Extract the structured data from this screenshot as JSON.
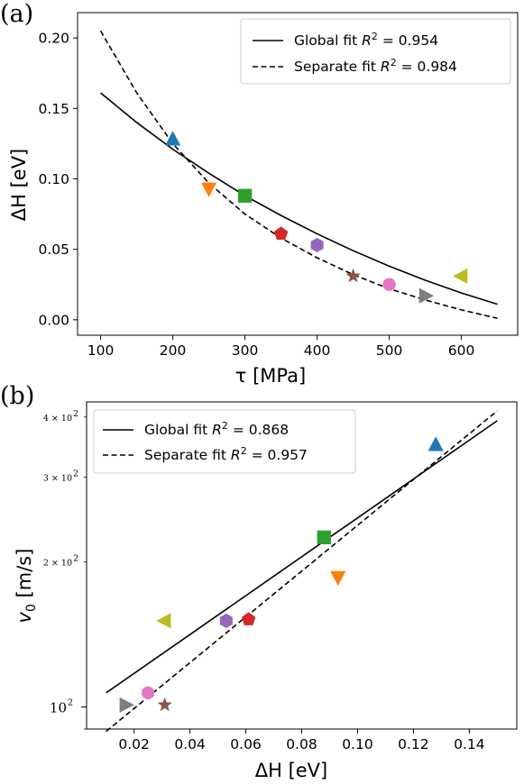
{
  "chart_data": [
    {
      "panel_label": "(a)",
      "type": "scatter",
      "xlabel": "τ [MPa]",
      "ylabel": "ΔH  [eV]",
      "xlim": [
        68,
        678
      ],
      "ylim": [
        -0.011,
        0.218
      ],
      "xticks": [
        100,
        200,
        300,
        400,
        500,
        600
      ],
      "xtick_labels": [
        "100",
        "200",
        "300",
        "400",
        "500",
        "600"
      ],
      "yticks": [
        0.0,
        0.05,
        0.1,
        0.15,
        0.2
      ],
      "ytick_labels": [
        "0.00",
        "0.05",
        "0.10",
        "0.15",
        "0.20"
      ],
      "y_scale": "linear",
      "legend_placement": "top-right",
      "grid": false,
      "points": [
        {
          "x": 200,
          "y": 0.128,
          "marker": "triangle-up",
          "color": "#1f77b4"
        },
        {
          "x": 250,
          "y": 0.093,
          "marker": "triangle-down",
          "color": "#ff7f0e"
        },
        {
          "x": 300,
          "y": 0.088,
          "marker": "square",
          "color": "#2ca02c"
        },
        {
          "x": 350,
          "y": 0.061,
          "marker": "pentagon",
          "color": "#d62728"
        },
        {
          "x": 400,
          "y": 0.053,
          "marker": "hexagon",
          "color": "#9467bd"
        },
        {
          "x": 450,
          "y": 0.031,
          "marker": "star",
          "color": "#8c564b"
        },
        {
          "x": 500,
          "y": 0.025,
          "marker": "circle",
          "color": "#e377c2"
        },
        {
          "x": 550,
          "y": 0.017,
          "marker": "triangle-right",
          "color": "#7f7f7f"
        },
        {
          "x": 600,
          "y": 0.031,
          "marker": "triangle-left",
          "color": "#bcbd22"
        }
      ],
      "series": [
        {
          "legend_prefix": "Global fit ",
          "legend_r2": "R",
          "legend_eq": " = 0.954",
          "style": "solid",
          "x": [
            100,
            150,
            200,
            250,
            300,
            350,
            400,
            450,
            500,
            550,
            600,
            650
          ],
          "y": [
            0.161,
            0.14,
            0.121,
            0.104,
            0.088,
            0.074,
            0.061,
            0.049,
            0.038,
            0.028,
            0.019,
            0.011
          ]
        },
        {
          "legend_prefix": "Separate fit ",
          "legend_r2": "R",
          "legend_eq": " = 0.984",
          "style": "dashed",
          "x": [
            100,
            150,
            200,
            250,
            300,
            350,
            400,
            450,
            500,
            550,
            600,
            650
          ],
          "y": [
            0.205,
            0.161,
            0.125,
            0.097,
            0.075,
            0.058,
            0.044,
            0.032,
            0.022,
            0.014,
            0.007,
            0.001
          ]
        }
      ]
    },
    {
      "panel_label": "(b)",
      "type": "scatter",
      "xlabel": "ΔH  [eV]",
      "ylabel": "v0 [m/s]",
      "xlim": [
        0.003,
        0.157
      ],
      "ylim": [
        90,
        430
      ],
      "y_scale": "log",
      "xticks": [
        0.02,
        0.04,
        0.06,
        0.08,
        0.1,
        0.12,
        0.14
      ],
      "xtick_labels": [
        "0.02",
        "0.04",
        "0.06",
        "0.08",
        "0.10",
        "0.12",
        "0.14"
      ],
      "yticks_major": [
        100
      ],
      "ytick_major_labels": [
        "10"
      ],
      "ytick_major_exp": "2",
      "yticks_minor": [
        200,
        300,
        400
      ],
      "ytick_minor_labels": [
        "2 × 10",
        "3 × 10",
        "4 × 10"
      ],
      "ytick_minor_exp": "2",
      "legend_placement": "top-left",
      "grid": false,
      "points": [
        {
          "x": 0.128,
          "y": 350,
          "marker": "triangle-up",
          "color": "#1f77b4"
        },
        {
          "x": 0.093,
          "y": 186,
          "marker": "triangle-down",
          "color": "#ff7f0e"
        },
        {
          "x": 0.088,
          "y": 225,
          "marker": "square",
          "color": "#2ca02c"
        },
        {
          "x": 0.061,
          "y": 152,
          "marker": "pentagon",
          "color": "#d62728"
        },
        {
          "x": 0.053,
          "y": 151,
          "marker": "hexagon",
          "color": "#9467bd"
        },
        {
          "x": 0.031,
          "y": 101,
          "marker": "star",
          "color": "#8c564b"
        },
        {
          "x": 0.025,
          "y": 107,
          "marker": "circle",
          "color": "#e377c2"
        },
        {
          "x": 0.017,
          "y": 101,
          "marker": "triangle-right",
          "color": "#7f7f7f"
        },
        {
          "x": 0.031,
          "y": 151,
          "marker": "triangle-left",
          "color": "#bcbd22"
        }
      ],
      "series": [
        {
          "legend_prefix": "Global fit ",
          "legend_r2": "R",
          "legend_eq": " = 0.868",
          "style": "solid",
          "x": [
            0.01,
            0.15
          ],
          "y": [
            107,
            393
          ]
        },
        {
          "legend_prefix": "Separate fit ",
          "legend_r2": "R",
          "legend_eq": " = 0.957",
          "style": "dashed",
          "x": [
            0.01,
            0.15
          ],
          "y": [
            89,
            412
          ]
        }
      ]
    }
  ]
}
